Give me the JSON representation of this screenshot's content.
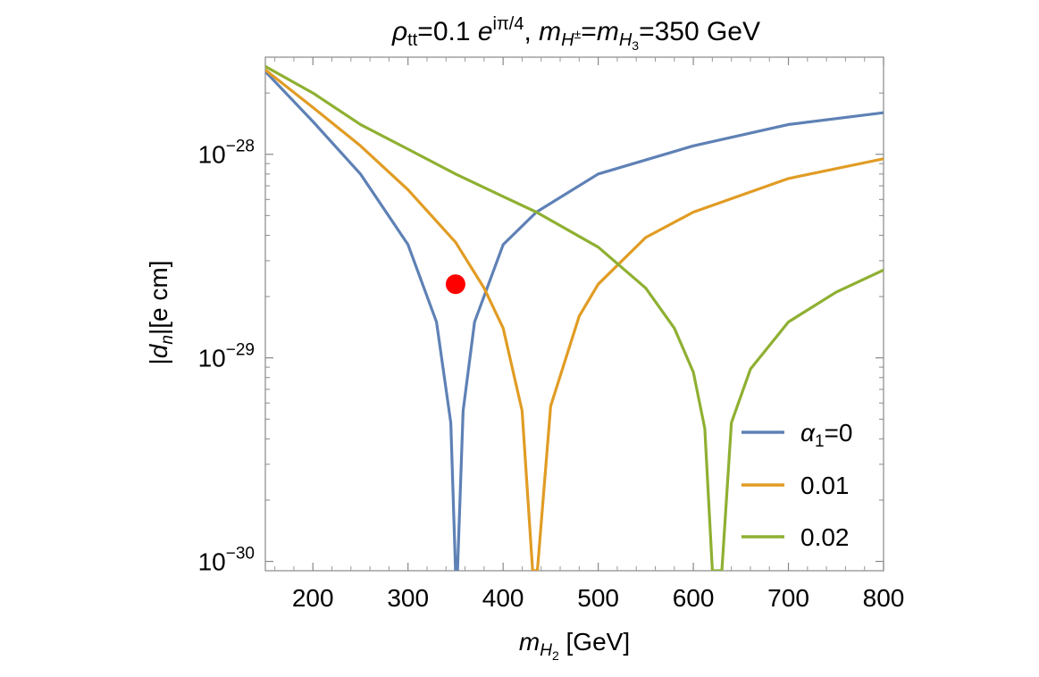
{
  "chart_data": {
    "type": "line",
    "title_parts": {
      "rho": "ρ",
      "rho_sub": "tt",
      "eq1": "=0.1 ",
      "e": "e",
      "e_sup": "iπ/4",
      "comma": ", ",
      "m1": "m",
      "m1_sub": "H",
      "m1_subsup": "±",
      "eq2": "=",
      "m2": "m",
      "m2_sub": "H",
      "m2_subsub": "3",
      "eq3": "=350 GeV"
    },
    "xlabel_parts": {
      "m": "m",
      "sub": "H",
      "subsub": "2",
      "unit": " [GeV]"
    },
    "ylabel_parts": {
      "pre": "|",
      "d": "d",
      "sub": "n",
      "post": "|[e cm]"
    },
    "xlim": [
      150,
      800
    ],
    "ylim": [
      9e-31,
      3e-28
    ],
    "yscale": "log",
    "x_ticks": [
      200,
      300,
      400,
      500,
      600,
      700,
      800
    ],
    "x_tick_labels": [
      "200",
      "300",
      "400",
      "500",
      "600",
      "700",
      "800"
    ],
    "y_ticks": [
      {
        "value": 1e-28,
        "base": "10",
        "exp": "−28"
      },
      {
        "value": 1e-29,
        "base": "10",
        "exp": "−29"
      },
      {
        "value": 1e-30,
        "base": "10",
        "exp": "−30"
      }
    ],
    "legend_position": "bottom-right",
    "series": [
      {
        "legend_parts": {
          "alpha": "α",
          "sub": "1",
          "rest": "=0"
        },
        "color": "#5E81B5",
        "zero_crossing": 351,
        "points": [
          [
            150,
            2.55e-28
          ],
          [
            200,
            1.45e-28
          ],
          [
            250,
            8e-29
          ],
          [
            300,
            3.6e-29
          ],
          [
            330,
            1.5e-29
          ],
          [
            345,
            4.8e-30
          ],
          [
            350,
            9e-31
          ],
          [
            352,
            9e-31
          ],
          [
            358,
            5.5e-30
          ],
          [
            370,
            1.5e-29
          ],
          [
            400,
            3.6e-29
          ],
          [
            435,
            5.2e-29
          ],
          [
            500,
            8e-29
          ],
          [
            600,
            1.1e-28
          ],
          [
            700,
            1.4e-28
          ],
          [
            800,
            1.6e-28
          ]
        ]
      },
      {
        "legend_parts": {
          "alpha": "",
          "sub": "",
          "rest": "0.01"
        },
        "color": "#E19C24",
        "zero_crossing": 434,
        "points": [
          [
            150,
            2.6e-28
          ],
          [
            200,
            1.7e-28
          ],
          [
            250,
            1.1e-28
          ],
          [
            300,
            6.7e-29
          ],
          [
            350,
            3.7e-29
          ],
          [
            380,
            2.2e-29
          ],
          [
            400,
            1.4e-29
          ],
          [
            420,
            5.5e-30
          ],
          [
            431,
            9e-31
          ],
          [
            436,
            9e-31
          ],
          [
            450,
            5.8e-30
          ],
          [
            480,
            1.6e-29
          ],
          [
            500,
            2.3e-29
          ],
          [
            550,
            3.9e-29
          ],
          [
            600,
            5.2e-29
          ],
          [
            700,
            7.6e-29
          ],
          [
            800,
            9.5e-29
          ]
        ]
      },
      {
        "legend_parts": {
          "alpha": "",
          "sub": "",
          "rest": "0.02"
        },
        "color": "#8FB032",
        "zero_crossing": 624,
        "points": [
          [
            150,
            2.7e-28
          ],
          [
            200,
            2e-28
          ],
          [
            250,
            1.4e-28
          ],
          [
            300,
            1.06e-28
          ],
          [
            350,
            8e-29
          ],
          [
            400,
            6.2e-29
          ],
          [
            435,
            5.2e-29
          ],
          [
            500,
            3.5e-29
          ],
          [
            550,
            2.2e-29
          ],
          [
            580,
            1.4e-29
          ],
          [
            600,
            8.5e-30
          ],
          [
            612,
            4.5e-30
          ],
          [
            620,
            9e-31
          ],
          [
            630,
            9e-31
          ],
          [
            640,
            4.8e-30
          ],
          [
            660,
            8.8e-30
          ],
          [
            700,
            1.5e-29
          ],
          [
            750,
            2.1e-29
          ],
          [
            800,
            2.7e-29
          ]
        ]
      }
    ],
    "marker": {
      "x": 350,
      "y": 2.3e-29,
      "color": "#FF0000"
    }
  }
}
